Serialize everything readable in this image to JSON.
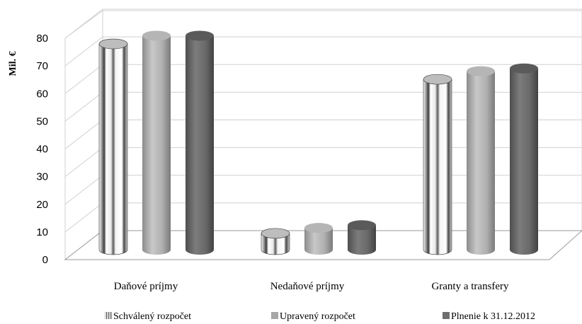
{
  "chart_data": {
    "type": "bar",
    "style": "3d-cylinder",
    "ylabel": "Mil. €",
    "ylim": [
      0,
      80
    ],
    "yticks": [
      0,
      10,
      20,
      30,
      40,
      50,
      60,
      70,
      80
    ],
    "grid": true,
    "legend_position": "bottom",
    "categories": [
      "Daňové príjmy",
      "Nedaňové príjmy",
      "Granty a transfery"
    ],
    "series": [
      {
        "name": "Schválený rozpočet",
        "values": [
          75.5,
          6,
          62.5
        ],
        "color": "#d9d9d9",
        "pattern": "vertical-stripes"
      },
      {
        "name": "Upravený rozpočet",
        "values": [
          78.5,
          8,
          65.5
        ],
        "color": "#a6a6a6"
      },
      {
        "name": "Plnenie k 31.12.2012",
        "values": [
          78.5,
          9,
          66.5
        ],
        "color": "#6e6e6e"
      }
    ]
  }
}
